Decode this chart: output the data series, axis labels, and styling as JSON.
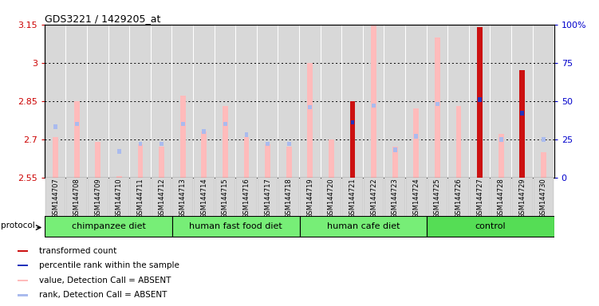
{
  "title": "GDS3221 / 1429205_at",
  "samples": [
    "GSM144707",
    "GSM144708",
    "GSM144709",
    "GSM144710",
    "GSM144711",
    "GSM144712",
    "GSM144713",
    "GSM144714",
    "GSM144715",
    "GSM144716",
    "GSM144717",
    "GSM144718",
    "GSM144719",
    "GSM144720",
    "GSM144721",
    "GSM144722",
    "GSM144723",
    "GSM144724",
    "GSM144725",
    "GSM144726",
    "GSM144727",
    "GSM144728",
    "GSM144729",
    "GSM144730"
  ],
  "value_absent": [
    2.71,
    2.85,
    2.69,
    2.555,
    2.68,
    2.67,
    2.87,
    2.73,
    2.83,
    2.71,
    2.68,
    2.67,
    3.0,
    2.7,
    null,
    3.21,
    2.67,
    2.82,
    3.1,
    2.83,
    null,
    2.72,
    null,
    2.65
  ],
  "value_present": [
    null,
    null,
    null,
    null,
    null,
    null,
    null,
    null,
    null,
    null,
    null,
    null,
    null,
    null,
    2.85,
    null,
    null,
    null,
    null,
    null,
    3.14,
    null,
    2.97,
    null
  ],
  "percentile_absent": [
    33,
    35,
    null,
    17,
    22,
    22,
    35,
    30,
    35,
    28,
    22,
    22,
    46,
    null,
    null,
    47,
    18,
    27,
    48,
    null,
    null,
    25,
    null,
    25
  ],
  "percentile_present": [
    null,
    null,
    null,
    null,
    null,
    null,
    null,
    null,
    null,
    null,
    null,
    null,
    null,
    null,
    36,
    null,
    null,
    null,
    null,
    null,
    51,
    null,
    42,
    null
  ],
  "groups": [
    {
      "label": "chimpanzee diet",
      "start": 0,
      "end": 5
    },
    {
      "label": "human fast food diet",
      "start": 6,
      "end": 11
    },
    {
      "label": "human cafe diet",
      "start": 12,
      "end": 17
    },
    {
      "label": "control",
      "start": 18,
      "end": 23
    }
  ],
  "ylim": [
    2.55,
    3.15
  ],
  "yticks": [
    2.55,
    2.7,
    2.85,
    3.0,
    3.15
  ],
  "ytick_labels": [
    "2.55",
    "2.7",
    "2.85",
    "3",
    "3.15"
  ],
  "right_yticks": [
    0,
    25,
    50,
    75,
    100
  ],
  "right_ytick_labels": [
    "0",
    "25",
    "50",
    "75",
    "100%"
  ],
  "color_bar_absent": "#ffbbbb",
  "color_bar_present": "#cc1111",
  "color_rank_absent": "#aabbee",
  "color_rank_present": "#2233bb",
  "left_axis_color": "#cc0000",
  "right_axis_color": "#0000cc",
  "col_bg_color": "#d8d8d8",
  "group_color_light": "#77ee77",
  "group_color_dark": "#55dd55"
}
